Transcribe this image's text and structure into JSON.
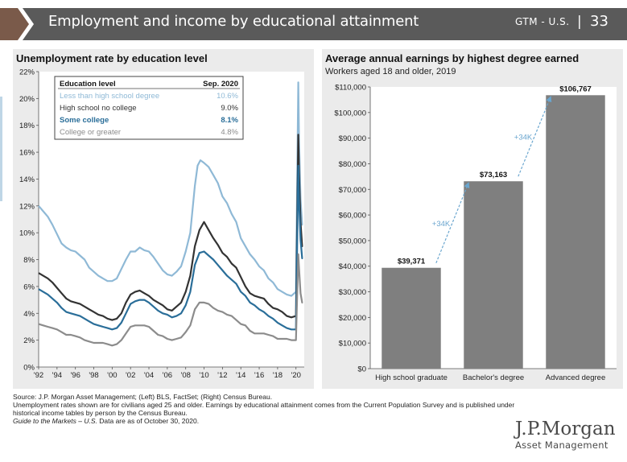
{
  "header": {
    "title": "Employment and income by educational attainment",
    "section": "GTM - U.S.",
    "separator": "|",
    "page_number": "33",
    "bar_color": "#5a5a5a",
    "accent_color": "#7a5a4a"
  },
  "left_chart": {
    "title": "Unemployment rate by education level",
    "legend_header_label": "Education level",
    "legend_header_date": "Sep. 2020"
  },
  "right_chart": {
    "title": "Average annual earnings by highest degree earned",
    "subtitle": "Workers aged 18 and older, 2019"
  },
  "chart_data": [
    {
      "type": "line",
      "title": "Unemployment rate by education level",
      "x_ticks": [
        "'92",
        "'94",
        "'96",
        "'98",
        "'00",
        "'02",
        "'04",
        "'06",
        "'08",
        "'10",
        "'12",
        "'14",
        "'16",
        "'18",
        "'20"
      ],
      "xlim": [
        1992,
        2020.9
      ],
      "ylim": [
        0,
        22
      ],
      "y_ticks": [
        "0%",
        "2%",
        "4%",
        "6%",
        "8%",
        "10%",
        "12%",
        "14%",
        "16%",
        "18%",
        "20%",
        "22%"
      ],
      "grid": false,
      "legend_position": "top-left",
      "series": [
        {
          "name": "Less than high school degree",
          "latest": "10.6%",
          "color": "#8fb9d6",
          "x": [
            1992,
            1992.5,
            1993,
            1993.5,
            1994,
            1994.5,
            1995,
            1995.5,
            1996,
            1996.5,
            1997,
            1997.5,
            1998,
            1998.5,
            1999,
            1999.5,
            2000,
            2000.5,
            2001,
            2001.5,
            2002,
            2002.5,
            2003,
            2003.5,
            2004,
            2004.5,
            2005,
            2005.5,
            2006,
            2006.5,
            2007,
            2007.5,
            2008,
            2008.5,
            2009,
            2009.3,
            2009.6,
            2010,
            2010.5,
            2011,
            2011.5,
            2012,
            2012.5,
            2013,
            2013.5,
            2014,
            2014.5,
            2015,
            2015.5,
            2016,
            2016.5,
            2017,
            2017.5,
            2018,
            2018.5,
            2019,
            2019.5,
            2020,
            2020.25,
            2020.33,
            2020.5,
            2020.67,
            2020.75
          ],
          "values": [
            12.0,
            11.6,
            11.2,
            10.6,
            9.9,
            9.2,
            8.9,
            8.7,
            8.6,
            8.3,
            8.0,
            7.4,
            7.1,
            6.8,
            6.6,
            6.4,
            6.4,
            6.6,
            7.3,
            8.0,
            8.6,
            8.6,
            8.9,
            8.7,
            8.6,
            8.2,
            7.7,
            7.2,
            6.9,
            6.8,
            7.1,
            7.5,
            8.6,
            10.0,
            13.5,
            15.0,
            15.4,
            15.2,
            14.9,
            14.3,
            13.7,
            12.7,
            12.2,
            11.4,
            10.8,
            9.6,
            9.0,
            8.4,
            8.0,
            7.5,
            7.2,
            6.6,
            6.3,
            5.8,
            5.6,
            5.4,
            5.3,
            5.6,
            21.2,
            17.0,
            12.5,
            10.6,
            10.6
          ]
        },
        {
          "name": "High school no college",
          "latest": "9.0%",
          "color": "#333333",
          "x": [
            1992,
            1992.5,
            1993,
            1993.5,
            1994,
            1994.5,
            1995,
            1995.5,
            1996,
            1996.5,
            1997,
            1997.5,
            1998,
            1998.5,
            1999,
            1999.5,
            2000,
            2000.5,
            2001,
            2001.5,
            2002,
            2002.5,
            2003,
            2003.5,
            2004,
            2004.5,
            2005,
            2005.5,
            2006,
            2006.5,
            2007,
            2007.5,
            2008,
            2008.5,
            2009,
            2009.5,
            2010,
            2010.5,
            2011,
            2011.5,
            2012,
            2012.5,
            2013,
            2013.5,
            2014,
            2014.5,
            2015,
            2015.5,
            2016,
            2016.5,
            2017,
            2017.5,
            2018,
            2018.5,
            2019,
            2019.5,
            2020,
            2020.25,
            2020.33,
            2020.5,
            2020.67,
            2020.75
          ],
          "values": [
            7.0,
            6.8,
            6.6,
            6.3,
            5.9,
            5.5,
            5.1,
            4.9,
            4.8,
            4.7,
            4.5,
            4.3,
            4.1,
            3.9,
            3.8,
            3.6,
            3.5,
            3.6,
            4.0,
            4.8,
            5.4,
            5.6,
            5.7,
            5.5,
            5.3,
            5.0,
            4.8,
            4.6,
            4.3,
            4.2,
            4.5,
            4.8,
            5.6,
            6.8,
            9.0,
            10.2,
            10.8,
            10.2,
            9.6,
            9.1,
            8.5,
            8.2,
            7.7,
            7.4,
            6.7,
            6.0,
            5.5,
            5.3,
            5.2,
            5.1,
            4.7,
            4.4,
            4.3,
            4.1,
            3.8,
            3.7,
            3.8,
            17.3,
            14.5,
            10.8,
            9.0,
            9.0
          ]
        },
        {
          "name": "Some college",
          "latest": "8.1%",
          "color": "#2a6e99",
          "x": [
            1992,
            1992.5,
            1993,
            1993.5,
            1994,
            1994.5,
            1995,
            1995.5,
            1996,
            1996.5,
            1997,
            1997.5,
            1998,
            1998.5,
            1999,
            1999.5,
            2000,
            2000.5,
            2001,
            2001.5,
            2002,
            2002.5,
            2003,
            2003.5,
            2004,
            2004.5,
            2005,
            2005.5,
            2006,
            2006.5,
            2007,
            2007.5,
            2008,
            2008.5,
            2009,
            2009.5,
            2010,
            2010.5,
            2011,
            2011.5,
            2012,
            2012.5,
            2013,
            2013.5,
            2014,
            2014.5,
            2015,
            2015.5,
            2016,
            2016.5,
            2017,
            2017.5,
            2018,
            2018.5,
            2019,
            2019.5,
            2020,
            2020.25,
            2020.33,
            2020.5,
            2020.67,
            2020.75
          ],
          "values": [
            5.8,
            5.6,
            5.4,
            5.1,
            4.8,
            4.4,
            4.1,
            4.0,
            3.9,
            3.8,
            3.6,
            3.4,
            3.2,
            3.1,
            3.0,
            2.9,
            2.8,
            2.9,
            3.3,
            4.0,
            4.7,
            4.9,
            5.0,
            5.0,
            4.8,
            4.5,
            4.2,
            4.0,
            3.9,
            3.7,
            3.8,
            4.0,
            4.6,
            5.6,
            7.6,
            8.5,
            8.6,
            8.3,
            8.0,
            7.6,
            7.2,
            6.8,
            6.5,
            6.2,
            5.6,
            5.3,
            4.8,
            4.6,
            4.3,
            4.1,
            3.8,
            3.6,
            3.3,
            3.1,
            2.9,
            2.8,
            2.8,
            15.0,
            12.5,
            9.5,
            8.1,
            8.1
          ]
        },
        {
          "name": "College or greater",
          "latest": "4.8%",
          "color": "#8c8c8c",
          "x": [
            1992,
            1992.5,
            1993,
            1993.5,
            1994,
            1994.5,
            1995,
            1995.5,
            1996,
            1996.5,
            1997,
            1997.5,
            1998,
            1998.5,
            1999,
            1999.5,
            2000,
            2000.5,
            2001,
            2001.5,
            2002,
            2002.5,
            2003,
            2003.5,
            2004,
            2004.5,
            2005,
            2005.5,
            2006,
            2006.5,
            2007,
            2007.5,
            2008,
            2008.5,
            2009,
            2009.5,
            2010,
            2010.5,
            2011,
            2011.5,
            2012,
            2012.5,
            2013,
            2013.5,
            2014,
            2014.5,
            2015,
            2015.5,
            2016,
            2016.5,
            2017,
            2017.5,
            2018,
            2018.5,
            2019,
            2019.5,
            2020,
            2020.25,
            2020.33,
            2020.5,
            2020.67,
            2020.75
          ],
          "values": [
            3.2,
            3.1,
            3.0,
            2.9,
            2.8,
            2.6,
            2.4,
            2.4,
            2.3,
            2.2,
            2.0,
            1.9,
            1.8,
            1.8,
            1.8,
            1.7,
            1.6,
            1.7,
            2.0,
            2.5,
            3.0,
            3.1,
            3.1,
            3.1,
            3.0,
            2.7,
            2.4,
            2.3,
            2.1,
            2.0,
            2.1,
            2.2,
            2.6,
            3.1,
            4.3,
            4.8,
            4.8,
            4.7,
            4.4,
            4.2,
            4.1,
            3.9,
            3.8,
            3.5,
            3.2,
            3.1,
            2.7,
            2.5,
            2.5,
            2.5,
            2.4,
            2.3,
            2.1,
            2.1,
            2.1,
            2.0,
            2.0,
            8.4,
            7.4,
            5.5,
            4.8,
            4.8
          ]
        }
      ]
    },
    {
      "type": "bar",
      "title": "Average annual earnings by highest degree earned",
      "subtitle": "Workers aged 18 and older, 2019",
      "categories": [
        "High school graduate",
        "Bachelor's degree",
        "Advanced degree"
      ],
      "values": [
        39371,
        73163,
        106767
      ],
      "value_labels": [
        "$39,371",
        "$73,163",
        "$106,767"
      ],
      "ylim": [
        0,
        110000
      ],
      "y_ticks": [
        "$0",
        "$10,000",
        "$20,000",
        "$30,000",
        "$40,000",
        "$50,000",
        "$60,000",
        "$70,000",
        "$80,000",
        "$90,000",
        "$100,000",
        "$110,000"
      ],
      "bar_color": "#7f7f7f",
      "annotations": [
        "+34K",
        "+34K"
      ],
      "annotation_color": "#6aa6cf"
    }
  ],
  "footer": {
    "source": "Source: J.P. Morgan Asset Management; (Left) BLS, FactSet; (Right) Census Bureau.",
    "note": "Unemployment rates shown are for civilians aged 25 and older. Earnings by educational attainment comes from the Current Population Survey and is published under historical income tables by person by the Census Bureau.",
    "guide_italic": "Guide to the Markets – U.S.",
    "guide_rest": " Data are as of October 30, 2020."
  },
  "logo": {
    "top": "J.P.Morgan",
    "bottom": "Asset Management"
  }
}
